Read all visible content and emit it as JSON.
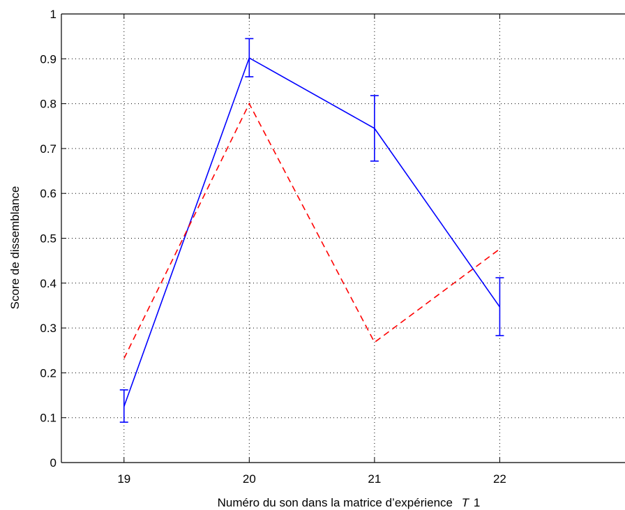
{
  "chart_data": {
    "type": "line",
    "x": [
      19,
      20,
      21,
      22
    ],
    "xlim": [
      18.5,
      23
    ],
    "ylim": [
      0,
      1
    ],
    "x_ticks": [
      "19",
      "20",
      "21",
      "22"
    ],
    "y_ticks": [
      "0",
      "0.1",
      "0.2",
      "0.3",
      "0.4",
      "0.5",
      "0.6",
      "0.7",
      "0.8",
      "0.9",
      "1"
    ],
    "xlabel": "Numéro du son dans la matrice d’expérience",
    "xlabel_suffix": "T",
    "xlabel_suffix_sub": "1",
    "ylabel": "Score de dissemblance",
    "grid": true,
    "series": [
      {
        "values": [
          0.125,
          0.902,
          0.745,
          0.347
        ],
        "err_low": [
          0.09,
          0.86,
          0.672,
          0.283
        ],
        "err_high": [
          0.162,
          0.945,
          0.818,
          0.412
        ],
        "color": "#0000ff",
        "style": "solid"
      },
      {
        "values": [
          0.232,
          0.8,
          0.268,
          0.476
        ],
        "color": "#ff0000",
        "style": "dashed"
      }
    ]
  }
}
